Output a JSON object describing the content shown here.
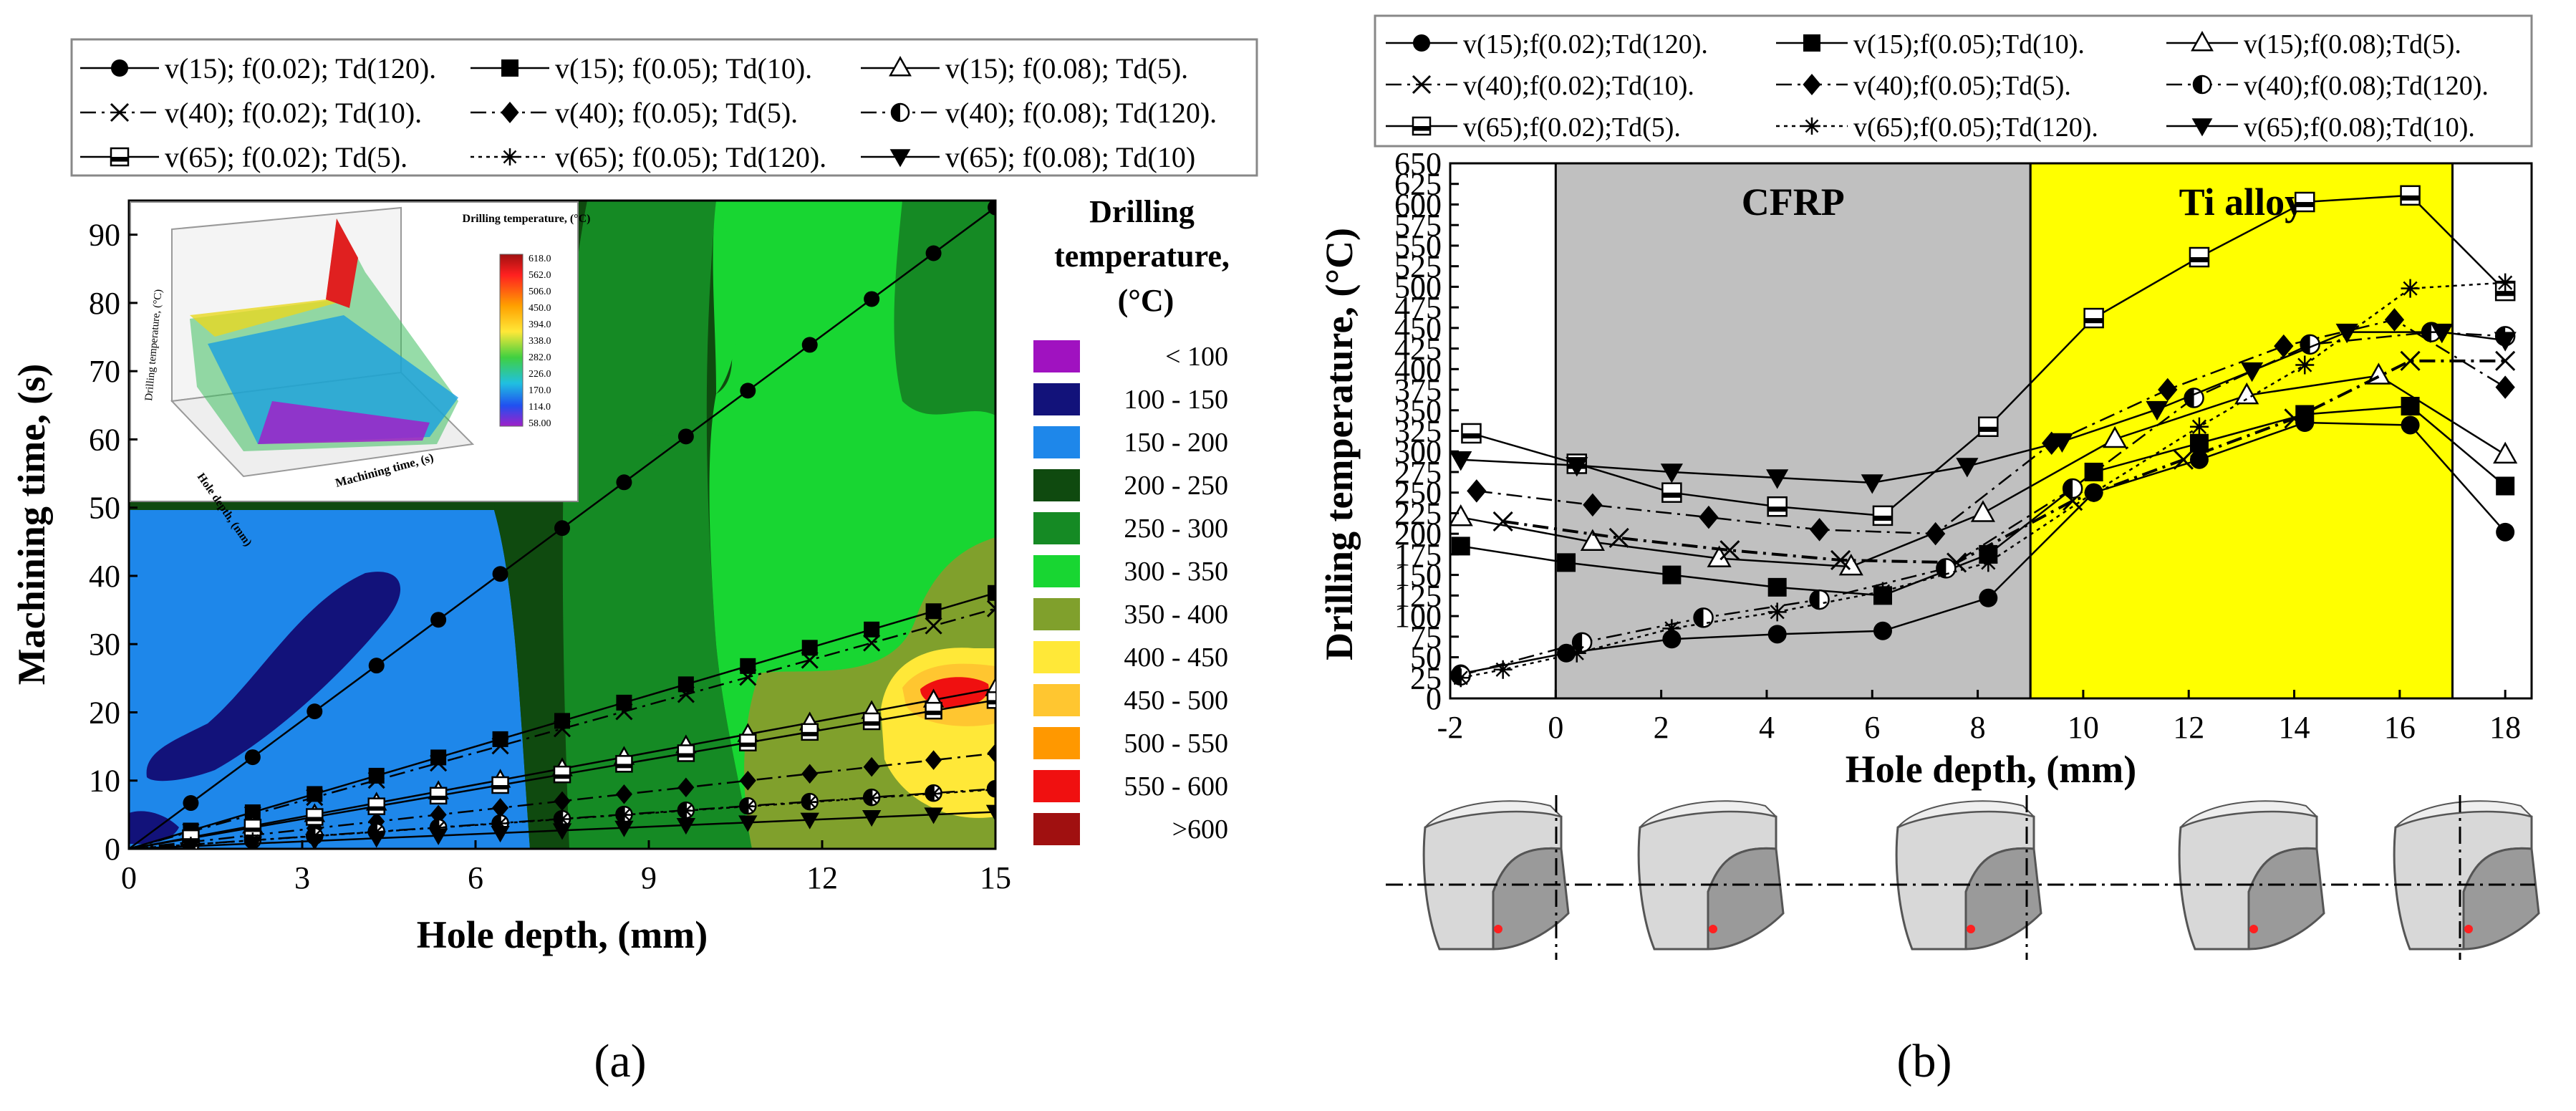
{
  "panel_a": {
    "label": "(a)",
    "legend_title": "Drilling temperature, (°C)",
    "color_legend": [
      {
        "label": "< 100",
        "color": "#a012c0"
      },
      {
        "label": "100 - 150",
        "color": "#12127a"
      },
      {
        "label": "150 - 200",
        "color": "#1e87ea"
      },
      {
        "label": "200 - 250",
        "color": "#0f4a0f"
      },
      {
        "label": "250 - 300",
        "color": "#158a24"
      },
      {
        "label": "300 - 350",
        "color": "#18d632"
      },
      {
        "label": "350 - 400",
        "color": "#80a02c"
      },
      {
        "label": "400 - 450",
        "color": "#ffe838"
      },
      {
        "label": "450 - 500",
        "color": "#ffc630"
      },
      {
        "label": "500 - 550",
        "color": "#ff9800"
      },
      {
        "label": "550 - 600",
        "color": "#f01010"
      },
      {
        "label": ">600",
        "color": "#a01010"
      }
    ],
    "inset": {
      "colorbar_title": "Drilling temperature, (°C)",
      "colorbar_ticks": [
        "618.0",
        "562.0",
        "506.0",
        "450.0",
        "394.0",
        "338.0",
        "282.0",
        "226.0",
        "170.0",
        "114.0",
        "58.00"
      ],
      "ylabel": "Drilling temperature, (°C)",
      "xlabel": "Machining time, (s)",
      "zlabel": "Hole depth, (mm)"
    }
  },
  "panel_b": {
    "label": "(b)",
    "region_labels": [
      "CFRP",
      "Ti alloy"
    ]
  },
  "chart_data": [
    {
      "type": "line",
      "title": "",
      "xlabel": "Hole depth, (mm)",
      "ylabel": "Machining time, (s)",
      "xlim": [
        0,
        15
      ],
      "ylim": [
        0,
        95
      ],
      "xticks": [
        "0",
        "3",
        "6",
        "9",
        "12",
        "15"
      ],
      "yticks": [
        "0",
        "10",
        "20",
        "30",
        "40",
        "50",
        "60",
        "70",
        "80",
        "90"
      ],
      "series": [
        {
          "name": "v(15); f(0.02); Td(120).",
          "marker": "circle",
          "dash": "solid",
          "x": [
            0,
            15
          ],
          "y": [
            0,
            94
          ]
        },
        {
          "name": "v(15); f(0.05); Td(10).",
          "marker": "square",
          "dash": "solid",
          "x": [
            0,
            15
          ],
          "y": [
            0,
            37.5
          ]
        },
        {
          "name": "v(15); f(0.08); Td(5).",
          "marker": "triangle-open",
          "dash": "solid",
          "x": [
            0,
            15
          ],
          "y": [
            0,
            23.5
          ]
        },
        {
          "name": "v(40); f(0.02); Td(10).",
          "marker": "x",
          "dash": "dashdot",
          "x": [
            0,
            15
          ],
          "y": [
            0,
            35.2
          ]
        },
        {
          "name": "v(40); f(0.05); Td(5).",
          "marker": "diamond",
          "dash": "dashdot",
          "x": [
            0,
            15
          ],
          "y": [
            0,
            14
          ]
        },
        {
          "name": "v(40); f(0.08); Td(120).",
          "marker": "half-circle",
          "dash": "dashdot",
          "x": [
            0,
            15
          ],
          "y": [
            0,
            8.8
          ]
        },
        {
          "name": "v(65); f(0.02); Td(5).",
          "marker": "square-open",
          "dash": "solid",
          "x": [
            0,
            15
          ],
          "y": [
            0,
            21.8
          ]
        },
        {
          "name": "v(65); f(0.05); Td(120).",
          "marker": "star",
          "dash": "dotted",
          "x": [
            0,
            15
          ],
          "y": [
            0,
            8.7
          ]
        },
        {
          "name": "v(65); f(0.08); Td(10)",
          "marker": "triangle-down",
          "dash": "solid",
          "x": [
            0,
            15
          ],
          "y": [
            0,
            5.4
          ]
        }
      ]
    },
    {
      "type": "line",
      "title": "",
      "xlabel": "Hole depth, (mm)",
      "ylabel": "Drilling temperature, (°C)",
      "xlim": [
        -2,
        18.5
      ],
      "ylim": [
        0,
        650
      ],
      "xticks": [
        "-2",
        "0",
        "2",
        "4",
        "6",
        "8",
        "10",
        "12",
        "14",
        "16",
        "18"
      ],
      "yticks": [
        "0",
        "25",
        "50",
        "75",
        "100",
        "125",
        "150",
        "175",
        "200",
        "225",
        "250",
        "275",
        "300",
        "325",
        "350",
        "375",
        "400",
        "425",
        "450",
        "475",
        "500",
        "525",
        "550",
        "575",
        "600",
        "625",
        "650"
      ],
      "regions": [
        {
          "label": "CFRP",
          "x": [
            0,
            9
          ],
          "color": "#c0c0c0"
        },
        {
          "label": "Ti alloy",
          "x": [
            9,
            17
          ],
          "color": "#ffff00"
        }
      ],
      "series": [
        {
          "name": "v(15);f(0.02);Td(120).",
          "marker": "circle",
          "dash": "solid",
          "x": [
            -1.8,
            0.2,
            2.2,
            4.2,
            6.2,
            8.2,
            10.2,
            12.2,
            14.2,
            16.2,
            18
          ],
          "y": [
            30,
            55,
            72,
            78,
            82,
            122,
            250,
            290,
            335,
            332,
            202
          ]
        },
        {
          "name": "v(15);f(0.05);Td(10).",
          "marker": "square",
          "dash": "solid",
          "x": [
            -1.8,
            0.2,
            2.2,
            4.2,
            6.2,
            8.2,
            10.2,
            12.2,
            14.2,
            16.2,
            18
          ],
          "y": [
            185,
            165,
            150,
            135,
            125,
            175,
            275,
            310,
            345,
            355,
            258
          ]
        },
        {
          "name": "v(15);f(0.08);Td(5).",
          "marker": "triangle-open",
          "dash": "solid",
          "x": [
            -1.8,
            0.7,
            3.1,
            5.6,
            8.1,
            10.6,
            13.1,
            15.6,
            18
          ],
          "y": [
            220,
            190,
            170,
            160,
            225,
            315,
            368,
            392,
            296
          ]
        },
        {
          "name": "v(40);f(0.02);Td(10).",
          "marker": "x",
          "dash": "dashdot",
          "x": [
            -1,
            1.2,
            3.3,
            5.4,
            7.6,
            9.8,
            11.9,
            14,
            16.2,
            18
          ],
          "y": [
            215,
            195,
            180,
            168,
            165,
            240,
            290,
            340,
            410,
            410
          ]
        },
        {
          "name": "v(40);f(0.05);Td(5).",
          "marker": "diamond",
          "dash": "dashdot",
          "x": [
            -1.5,
            0.7,
            2.9,
            5,
            7.2,
            9.4,
            11.6,
            13.8,
            15.9,
            18
          ],
          "y": [
            252,
            235,
            220,
            205,
            200,
            310,
            375,
            428,
            460,
            378
          ]
        },
        {
          "name": "v(40);f(0.08);Td(120).",
          "marker": "half-circle",
          "dash": "dashdot",
          "x": [
            -1.8,
            0.5,
            2.8,
            5,
            7.4,
            9.8,
            12.1,
            14.3,
            16.6,
            18
          ],
          "y": [
            28,
            68,
            98,
            120,
            158,
            255,
            365,
            430,
            445,
            440
          ]
        },
        {
          "name": "v(65);f(0.02);Td(5).",
          "marker": "square-open",
          "dash": "solid",
          "x": [
            -1.6,
            0.4,
            2.2,
            4.2,
            6.2,
            8.2,
            10.2,
            12.2,
            14.2,
            16.2,
            18
          ],
          "y": [
            322,
            285,
            250,
            233,
            222,
            330,
            462,
            536,
            603,
            611,
            495
          ]
        },
        {
          "name": "v(65);f(0.05);Td(120).",
          "marker": "star",
          "dash": "dotted",
          "x": [
            -1.8,
            -1,
            0.4,
            2.2,
            4.2,
            6.2,
            8.2,
            10.2,
            12.2,
            14.2,
            16.2,
            18
          ],
          "y": [
            25,
            35,
            55,
            85,
            105,
            130,
            165,
            250,
            330,
            405,
            498,
            505
          ]
        },
        {
          "name": "v(65);f(0.08);Td(10).",
          "marker": "triangle-down",
          "dash": "solid",
          "x": [
            -1.8,
            0.4,
            2.2,
            4.2,
            6,
            7.8,
            9.6,
            11.4,
            13.2,
            15,
            16.8,
            18
          ],
          "y": [
            290,
            283,
            275,
            268,
            262,
            282,
            312,
            351,
            398,
            445,
            445,
            435
          ]
        }
      ]
    }
  ]
}
